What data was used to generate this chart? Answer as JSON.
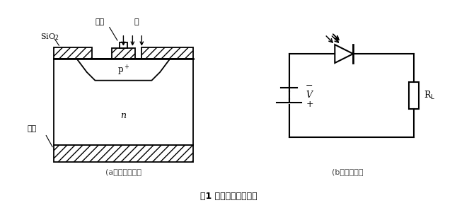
{
  "bg_color": "#ffffff",
  "lc": "#000000",
  "lw": 1.3,
  "title": "图1 光电二极管结构图",
  "label_a": "(a）结构示意图",
  "label_b": "(b）基本电路",
  "label_sio2": "SiO$_2$",
  "label_electrode_top": "电极",
  "label_light": "光",
  "label_electrode_left": "电极",
  "label_p": "p$^+$",
  "label_n": "n",
  "label_V": "V",
  "label_RL": "R$_\\mathrm{L}$",
  "label_minus": "−",
  "label_plus": "+",
  "figsize": [
    6.46,
    2.87
  ],
  "dpi": 100
}
